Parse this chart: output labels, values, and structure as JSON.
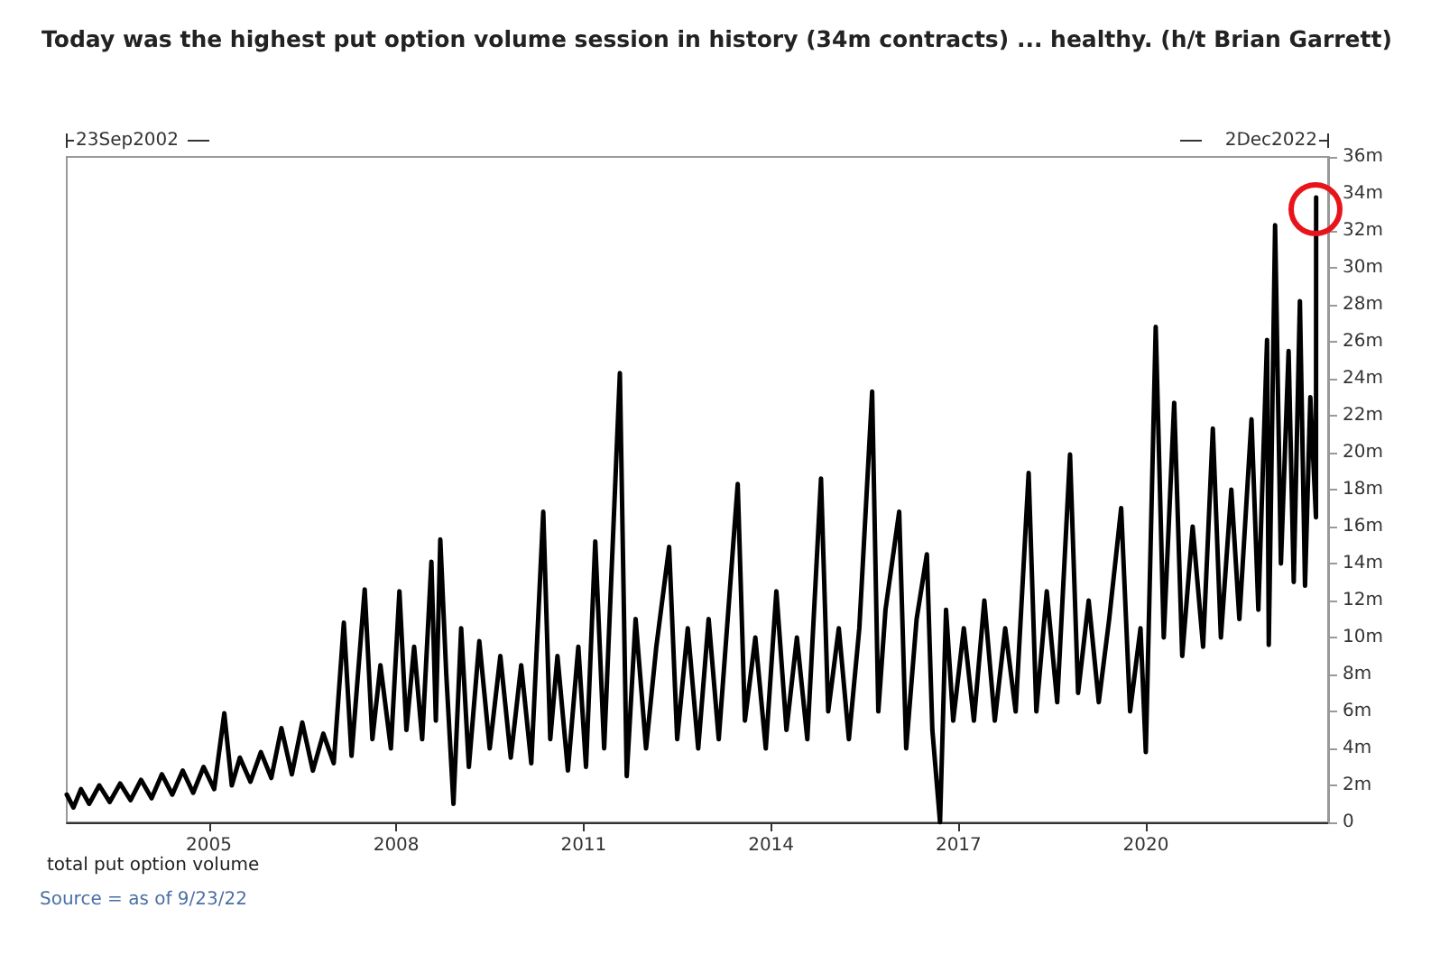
{
  "chart_data": {
    "type": "line",
    "title": "Today was the highest put option volume session in history (34m contracts) ... healthy. (h/t Brian Garrett)",
    "annotations": [
      "23Sep2002",
      "2Dec2022",
      "total put option volume",
      "Source = as of 9/23/22"
    ],
    "xlim": [
      "2002-09-23",
      "2022-12-02"
    ],
    "xticks": [
      "2005",
      "2008",
      "2011",
      "2014",
      "2017",
      "2020"
    ],
    "ylim": [
      0,
      36
    ],
    "yticks": [
      0,
      {
        "value": 2,
        "label": "2m"
      },
      {
        "value": 4,
        "label": "4m"
      },
      {
        "value": 6,
        "label": "6m"
      },
      {
        "value": 8,
        "label": "8m"
      },
      {
        "value": 10,
        "label": "10m"
      },
      {
        "value": 12,
        "label": "12m"
      },
      {
        "value": 14,
        "label": "14m"
      },
      {
        "value": 16,
        "label": "16m"
      },
      {
        "value": 18,
        "label": "18m"
      },
      {
        "value": 20,
        "label": "20m"
      },
      {
        "value": 22,
        "label": "22m"
      },
      {
        "value": 24,
        "label": "24m"
      },
      {
        "value": 26,
        "label": "26m"
      },
      {
        "value": 28,
        "label": "28m"
      },
      {
        "value": 30,
        "label": "30m"
      },
      {
        "value": 32,
        "label": "32m"
      },
      {
        "value": 34,
        "label": "34m"
      },
      {
        "value": 36,
        "label": "36m"
      }
    ],
    "grid": false,
    "marker": "none",
    "line_style": "solid",
    "series": [
      {
        "color": "#000000",
        "x": [
          "2002-09-23",
          "2002-11-01",
          "2002-12-15",
          "2003-02-01",
          "2003-04-01",
          "2003-06-01",
          "2003-08-01",
          "2003-10-01",
          "2003-12-01",
          "2004-02-01",
          "2004-04-01",
          "2004-06-01",
          "2004-08-01",
          "2004-10-01",
          "2004-12-01",
          "2005-02-01",
          "2005-04-01",
          "2005-05-15",
          "2005-07-01",
          "2005-09-01",
          "2005-11-01",
          "2006-01-01",
          "2006-03-01",
          "2006-05-01",
          "2006-07-01",
          "2006-09-01",
          "2006-11-01",
          "2007-01-01",
          "2007-03-01",
          "2007-04-15",
          "2007-07-01",
          "2007-08-15",
          "2007-10-01",
          "2007-12-01",
          "2008-01-20",
          "2008-03-01",
          "2008-04-15",
          "2008-06-01",
          "2008-07-25",
          "2008-08-20",
          "2008-09-15",
          "2008-10-20",
          "2008-12-01",
          "2009-01-15",
          "2009-03-01",
          "2009-05-01",
          "2009-07-01",
          "2009-09-01",
          "2009-11-01",
          "2010-01-01",
          "2010-03-01",
          "2010-05-10",
          "2010-06-20",
          "2010-08-01",
          "2010-10-01",
          "2010-12-01",
          "2011-01-15",
          "2011-03-10",
          "2011-05-01",
          "2011-08-01",
          "2011-09-10",
          "2011-11-01",
          "2012-01-01",
          "2012-03-01",
          "2012-05-15",
          "2012-07-01",
          "2012-09-01",
          "2012-11-01",
          "2013-01-01",
          "2013-03-01",
          "2013-06-20",
          "2013-08-01",
          "2013-10-01",
          "2013-12-01",
          "2014-02-01",
          "2014-04-01",
          "2014-06-01",
          "2014-08-01",
          "2014-10-20",
          "2014-12-01",
          "2015-02-01",
          "2015-04-01",
          "2015-06-01",
          "2015-08-15",
          "2015-09-20",
          "2015-11-01",
          "2016-01-20",
          "2016-03-01",
          "2016-05-01",
          "2016-06-30",
          "2016-08-01",
          "2016-09-15",
          "2016-10-20",
          "2016-12-01",
          "2017-02-01",
          "2017-04-01",
          "2017-06-01",
          "2017-08-01",
          "2017-10-01",
          "2017-12-01",
          "2018-02-15",
          "2018-04-01",
          "2018-06-01",
          "2018-08-01",
          "2018-10-15",
          "2018-12-01",
          "2019-02-01",
          "2019-04-01",
          "2019-06-01",
          "2019-08-10",
          "2019-10-01",
          "2019-12-01",
          "2020-01-01",
          "2020-02-28",
          "2020-04-15",
          "2020-06-15",
          "2020-08-01",
          "2020-10-01",
          "2020-12-01",
          "2021-01-27",
          "2021-03-15",
          "2021-05-15",
          "2021-07-01",
          "2021-09-10",
          "2021-10-20",
          "2021-12-10",
          "2021-12-20",
          "2022-01-26",
          "2022-03-01",
          "2022-04-15",
          "2022-05-15",
          "2022-06-20",
          "2022-07-20",
          "2022-08-20",
          "2022-09-22",
          "2022-09-23"
        ],
        "values": [
          1.5,
          0.8,
          1.8,
          1.0,
          2.0,
          1.1,
          2.1,
          1.2,
          2.3,
          1.3,
          2.6,
          1.5,
          2.8,
          1.6,
          3.0,
          1.8,
          5.9,
          2.0,
          3.5,
          2.2,
          3.8,
          2.4,
          5.1,
          2.6,
          5.4,
          2.8,
          4.8,
          3.2,
          10.8,
          3.6,
          12.6,
          4.5,
          8.5,
          4.0,
          12.5,
          5.0,
          9.5,
          4.5,
          14.1,
          5.5,
          15.3,
          8.0,
          1.0,
          10.5,
          3.0,
          9.8,
          4.0,
          9.0,
          3.5,
          8.5,
          3.2,
          16.8,
          4.5,
          9.0,
          2.8,
          9.5,
          3.0,
          15.2,
          4.0,
          24.3,
          2.5,
          11.0,
          4.0,
          9.5,
          14.9,
          4.5,
          10.5,
          4.0,
          11.0,
          4.5,
          18.3,
          5.5,
          10.0,
          4.0,
          12.5,
          5.0,
          10.0,
          4.5,
          18.6,
          6.0,
          10.5,
          4.5,
          10.5,
          23.3,
          6.0,
          11.5,
          16.8,
          4.0,
          11.0,
          14.5,
          5.0,
          0,
          11.5,
          5.5,
          10.5,
          5.5,
          12.0,
          5.5,
          10.5,
          6.0,
          18.9,
          6.0,
          12.5,
          6.5,
          19.9,
          7.0,
          12.0,
          6.5,
          11.0,
          17.0,
          6.0,
          10.5,
          3.8,
          26.8,
          10.0,
          22.7,
          9.0,
          16.0,
          9.5,
          21.3,
          10.0,
          18.0,
          11.0,
          21.8,
          11.5,
          26.1,
          9.6,
          32.3,
          14.0,
          25.5,
          13.0,
          28.2,
          12.8,
          23.0,
          16.5,
          33.8
        ]
      }
    ]
  }
}
